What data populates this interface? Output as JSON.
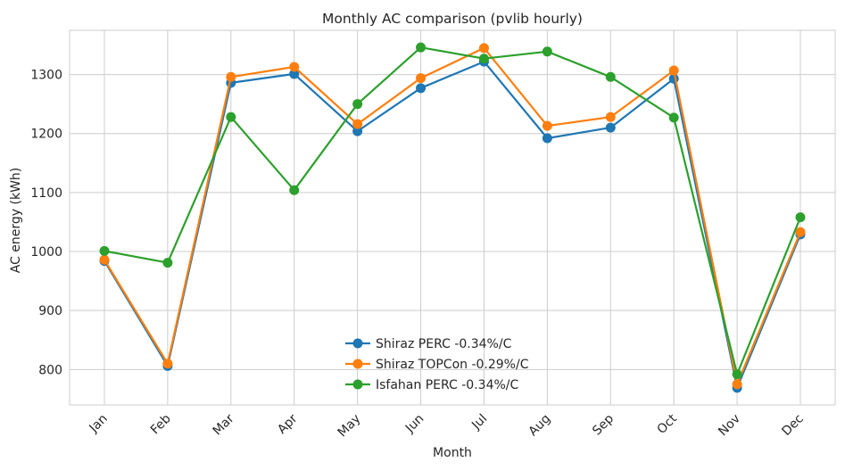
{
  "chart_data": {
    "type": "line",
    "title": "Monthly AC comparison (pvlib hourly)",
    "xlabel": "Month",
    "ylabel": "AC energy (kWh)",
    "categories": [
      "Jan",
      "Feb",
      "Mar",
      "Apr",
      "May",
      "Jun",
      "Jul",
      "Aug",
      "Sep",
      "Oct",
      "Nov",
      "Dec"
    ],
    "ylim": [
      740,
      1375
    ],
    "yticks": [
      800,
      900,
      1000,
      1100,
      1200,
      1300
    ],
    "grid": true,
    "legend_position": "lower-center",
    "series": [
      {
        "name": "Shiraz PERC -0.34%/C",
        "color": "#1f77b4",
        "marker": "circle",
        "values": [
          984,
          806,
          1286,
          1301,
          1204,
          1277,
          1322,
          1192,
          1210,
          1293,
          769,
          1029
        ]
      },
      {
        "name": "Shiraz TOPCon -0.29%/C",
        "color": "#ff7f0e",
        "marker": "circle",
        "values": [
          986,
          810,
          1296,
          1313,
          1216,
          1294,
          1345,
          1213,
          1228,
          1307,
          775,
          1033
        ]
      },
      {
        "name": "Isfahan PERC -0.34%/C",
        "color": "#2ca02c",
        "marker": "circle",
        "values": [
          1001,
          981,
          1228,
          1104,
          1250,
          1346,
          1327,
          1339,
          1296,
          1227,
          792,
          1058
        ]
      }
    ]
  }
}
